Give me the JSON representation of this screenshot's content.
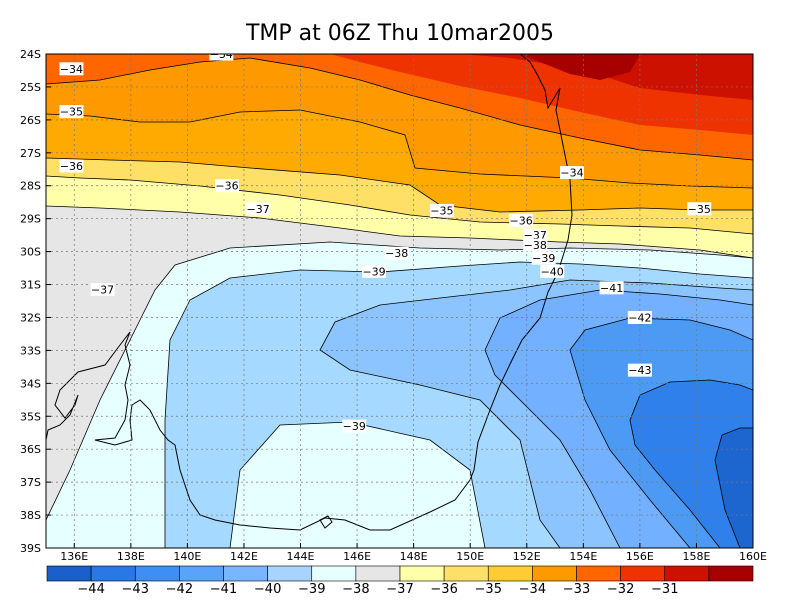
{
  "title": "TMP at 06Z Thu 10mar2005",
  "chart_data": {
    "type": "heatmap",
    "title": "TMP at 06Z Thu 10mar2005",
    "xlim": [
      135.0,
      160.0
    ],
    "ylim": [
      -39.0,
      -24.0
    ],
    "x_ticks": [
      {
        "v": 136,
        "label": "136E"
      },
      {
        "v": 138,
        "label": "138E"
      },
      {
        "v": 140,
        "label": "140E"
      },
      {
        "v": 142,
        "label": "142E"
      },
      {
        "v": 144,
        "label": "144E"
      },
      {
        "v": 146,
        "label": "146E"
      },
      {
        "v": 148,
        "label": "148E"
      },
      {
        "v": 150,
        "label": "150E"
      },
      {
        "v": 152,
        "label": "152E"
      },
      {
        "v": 154,
        "label": "154E"
      },
      {
        "v": 156,
        "label": "156E"
      },
      {
        "v": 158,
        "label": "158E"
      },
      {
        "v": 160,
        "label": "160E"
      }
    ],
    "y_ticks": [
      {
        "v": -24,
        "label": "24S"
      },
      {
        "v": -25,
        "label": "25S"
      },
      {
        "v": -26,
        "label": "26S"
      },
      {
        "v": -27,
        "label": "27S"
      },
      {
        "v": -28,
        "label": "28S"
      },
      {
        "v": -29,
        "label": "29S"
      },
      {
        "v": -30,
        "label": "30S"
      },
      {
        "v": -31,
        "label": "31S"
      },
      {
        "v": -32,
        "label": "32S"
      },
      {
        "v": -33,
        "label": "33S"
      },
      {
        "v": -34,
        "label": "34S"
      },
      {
        "v": -35,
        "label": "35S"
      },
      {
        "v": -36,
        "label": "36S"
      },
      {
        "v": -37,
        "label": "37S"
      },
      {
        "v": -38,
        "label": "38S"
      },
      {
        "v": -39,
        "label": "39S"
      }
    ],
    "grid": true,
    "levels": [
      {
        "value": -34,
        "label": "−34",
        "color": "#ff6600"
      },
      {
        "value": -35,
        "label": "−35",
        "color": "#ff9900"
      },
      {
        "value": -36,
        "label": "−36",
        "color": "#ffbb22"
      },
      {
        "value": -37,
        "label": "−37",
        "color": "#ffffaa"
      },
      {
        "value": -38,
        "label": "−38",
        "color": "#e6e6e6"
      },
      {
        "value": -39,
        "label": "−39",
        "color": "#e6ffff"
      },
      {
        "value": -40,
        "label": "−40",
        "color": "#a6d9ff"
      },
      {
        "value": -41,
        "label": "−41",
        "color": "#8cc4ff"
      },
      {
        "value": -42,
        "label": "−42",
        "color": "#73b0ff"
      },
      {
        "value": -43,
        "label": "−43",
        "color": "#3388ee"
      }
    ],
    "colorbar": {
      "colors": [
        "#1a5fcc",
        "#2a78e8",
        "#3d8ef5",
        "#5aa3fb",
        "#7ab6ff",
        "#a6d4ff",
        "#e6ffff",
        "#e6e6e6",
        "#ffffaa",
        "#ffe066",
        "#ffcc33",
        "#ff9900",
        "#ff6600",
        "#ee3300",
        "#cc1100",
        "#a60000"
      ],
      "labels": [
        "−44",
        "−43",
        "−42",
        "−41",
        "−40",
        "−39",
        "−38",
        "−37",
        "−36",
        "−35",
        "−34",
        "−33",
        "−32",
        "−31"
      ]
    },
    "contour_labels": [
      {
        "text": "−34",
        "lon": 135.9,
        "lat": -24.45
      },
      {
        "text": "−34",
        "lon": 141.2,
        "lat": -24.0
      },
      {
        "text": "−34",
        "lon": 153.6,
        "lat": -27.6
      },
      {
        "text": "−35",
        "lon": 135.9,
        "lat": -25.75
      },
      {
        "text": "−35",
        "lon": 149.0,
        "lat": -28.75
      },
      {
        "text": "−35",
        "lon": 158.1,
        "lat": -28.7
      },
      {
        "text": "−36",
        "lon": 135.9,
        "lat": -27.4
      },
      {
        "text": "−36",
        "lon": 141.4,
        "lat": -28.0
      },
      {
        "text": "−36",
        "lon": 151.8,
        "lat": -29.05
      },
      {
        "text": "−37",
        "lon": 142.5,
        "lat": -28.7
      },
      {
        "text": "−37",
        "lon": 152.3,
        "lat": -29.5
      },
      {
        "text": "−37",
        "lon": 137.0,
        "lat": -31.15
      },
      {
        "text": "−38",
        "lon": 152.3,
        "lat": -29.8
      },
      {
        "text": "−38",
        "lon": 147.4,
        "lat": -30.05
      },
      {
        "text": "−39",
        "lon": 146.6,
        "lat": -30.6
      },
      {
        "text": "−39",
        "lon": 152.6,
        "lat": -30.2
      },
      {
        "text": "−39",
        "lon": 145.9,
        "lat": -35.3
      },
      {
        "text": "−40",
        "lon": 152.9,
        "lat": -30.6
      },
      {
        "text": "−41",
        "lon": 155.0,
        "lat": -31.1
      },
      {
        "text": "−42",
        "lon": 156.0,
        "lat": -32.0
      },
      {
        "text": "−43",
        "lon": 156.0,
        "lat": -33.6
      }
    ]
  }
}
